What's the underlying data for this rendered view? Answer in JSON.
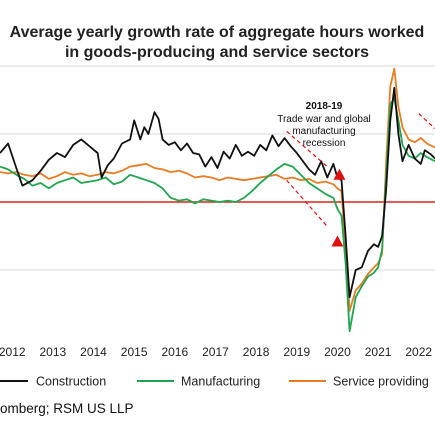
{
  "chart_data": {
    "type": "line",
    "title_line1": "Average yearly growth rate of aggregate hours worked",
    "title_line2": "in goods-producing and service sectors",
    "x_ticks": [
      "2012",
      "2013",
      "2014",
      "2015",
      "2016",
      "2017",
      "2018",
      "2019",
      "2020",
      "2021",
      "2022"
    ],
    "xlim": [
      2011.7,
      2022.4
    ],
    "ylim": [
      -10,
      10
    ],
    "reference_line": 0,
    "grid": "horizontal",
    "legend_position": "bottom",
    "annotation": {
      "year": "2018-19",
      "lines": [
        "Trade war and global",
        "manufacturing",
        "recession"
      ]
    },
    "series": [
      {
        "name": "Construction",
        "color": "#111111",
        "points": [
          [
            2011.7,
            3.6
          ],
          [
            2011.9,
            4.3
          ],
          [
            2012.1,
            2.5
          ],
          [
            2012.25,
            1.2
          ],
          [
            2012.5,
            1.6
          ],
          [
            2012.7,
            2.3
          ],
          [
            2012.9,
            3.1
          ],
          [
            2013.1,
            3.6
          ],
          [
            2013.3,
            3.3
          ],
          [
            2013.5,
            4.2
          ],
          [
            2013.7,
            4.6
          ],
          [
            2013.9,
            4.1
          ],
          [
            2014.1,
            3.6
          ],
          [
            2014.2,
            1.8
          ],
          [
            2014.35,
            2.7
          ],
          [
            2014.5,
            3.2
          ],
          [
            2014.7,
            4.3
          ],
          [
            2014.9,
            4.6
          ],
          [
            2015.0,
            6.0
          ],
          [
            2015.15,
            4.6
          ],
          [
            2015.25,
            5.5
          ],
          [
            2015.35,
            5.0
          ],
          [
            2015.5,
            6.6
          ],
          [
            2015.6,
            6.1
          ],
          [
            2015.7,
            4.6
          ],
          [
            2015.85,
            4.2
          ],
          [
            2016.0,
            4.4
          ],
          [
            2016.15,
            3.8
          ],
          [
            2016.3,
            4.3
          ],
          [
            2016.45,
            3.6
          ],
          [
            2016.6,
            3.5
          ],
          [
            2016.75,
            2.6
          ],
          [
            2016.9,
            3.3
          ],
          [
            2017.05,
            2.5
          ],
          [
            2017.2,
            3.7
          ],
          [
            2017.35,
            3.2
          ],
          [
            2017.5,
            4.2
          ],
          [
            2017.65,
            3.4
          ],
          [
            2017.8,
            3.7
          ],
          [
            2017.95,
            3.4
          ],
          [
            2018.1,
            4.2
          ],
          [
            2018.25,
            3.8
          ],
          [
            2018.4,
            4.9
          ],
          [
            2018.55,
            4.1
          ],
          [
            2018.7,
            4.7
          ],
          [
            2018.85,
            4.1
          ],
          [
            2019.0,
            3.6
          ],
          [
            2019.15,
            3.0
          ],
          [
            2019.3,
            2.4
          ],
          [
            2019.45,
            2.0
          ],
          [
            2019.6,
            3.0
          ],
          [
            2019.75,
            1.8
          ],
          [
            2019.9,
            2.8
          ],
          [
            2020.0,
            1.8
          ],
          [
            2020.1,
            1.6
          ],
          [
            2020.2,
            -2.5
          ],
          [
            2020.3,
            -7.0
          ],
          [
            2020.45,
            -5.0
          ],
          [
            2020.6,
            -4.8
          ],
          [
            2020.75,
            -3.6
          ],
          [
            2020.9,
            -3.1
          ],
          [
            2021.0,
            -3.3
          ],
          [
            2021.1,
            -2.5
          ],
          [
            2021.2,
            1.0
          ],
          [
            2021.3,
            6.0
          ],
          [
            2021.4,
            8.4
          ],
          [
            2021.5,
            5.0
          ],
          [
            2021.6,
            3.0
          ],
          [
            2021.75,
            4.2
          ],
          [
            2021.9,
            3.2
          ],
          [
            2022.05,
            2.8
          ],
          [
            2022.15,
            3.8
          ],
          [
            2022.3,
            3.5
          ],
          [
            2022.4,
            3.2
          ]
        ]
      },
      {
        "name": "Manufacturing",
        "color": "#21a551",
        "points": [
          [
            2011.7,
            2.6
          ],
          [
            2011.9,
            2.4
          ],
          [
            2012.1,
            2.0
          ],
          [
            2012.3,
            1.7
          ],
          [
            2012.5,
            1.2
          ],
          [
            2012.7,
            1.4
          ],
          [
            2012.9,
            1.0
          ],
          [
            2013.1,
            1.4
          ],
          [
            2013.3,
            1.6
          ],
          [
            2013.5,
            1.8
          ],
          [
            2013.7,
            1.4
          ],
          [
            2013.9,
            1.5
          ],
          [
            2014.1,
            1.6
          ],
          [
            2014.3,
            1.8
          ],
          [
            2014.5,
            1.3
          ],
          [
            2014.7,
            1.5
          ],
          [
            2014.9,
            2.0
          ],
          [
            2015.1,
            1.8
          ],
          [
            2015.3,
            1.6
          ],
          [
            2015.5,
            1.4
          ],
          [
            2015.7,
            1.0
          ],
          [
            2015.9,
            0.3
          ],
          [
            2016.1,
            0.1
          ],
          [
            2016.3,
            0.2
          ],
          [
            2016.5,
            -0.1
          ],
          [
            2016.7,
            0.2
          ],
          [
            2016.9,
            0.1
          ],
          [
            2017.1,
            0.0
          ],
          [
            2017.3,
            0.1
          ],
          [
            2017.5,
            0.0
          ],
          [
            2017.7,
            0.3
          ],
          [
            2017.9,
            0.8
          ],
          [
            2018.1,
            1.4
          ],
          [
            2018.3,
            1.9
          ],
          [
            2018.5,
            2.4
          ],
          [
            2018.7,
            2.8
          ],
          [
            2018.9,
            2.6
          ],
          [
            2019.1,
            2.0
          ],
          [
            2019.3,
            1.4
          ],
          [
            2019.5,
            1.0
          ],
          [
            2019.7,
            0.6
          ],
          [
            2019.9,
            0.3
          ],
          [
            2020.0,
            -0.5
          ],
          [
            2020.1,
            -1.0
          ],
          [
            2020.2,
            -4.5
          ],
          [
            2020.3,
            -9.5
          ],
          [
            2020.45,
            -7.0
          ],
          [
            2020.6,
            -6.2
          ],
          [
            2020.75,
            -5.5
          ],
          [
            2020.9,
            -5.2
          ],
          [
            2021.0,
            -4.8
          ],
          [
            2021.1,
            -3.5
          ],
          [
            2021.2,
            2.0
          ],
          [
            2021.3,
            7.2
          ],
          [
            2021.4,
            7.6
          ],
          [
            2021.5,
            6.0
          ],
          [
            2021.6,
            4.2
          ],
          [
            2021.75,
            3.4
          ],
          [
            2021.9,
            3.2
          ],
          [
            2022.05,
            3.6
          ],
          [
            2022.2,
            3.3
          ],
          [
            2022.4,
            3.0
          ]
        ]
      },
      {
        "name": "Service providing",
        "color": "#e87c25",
        "points": [
          [
            2011.7,
            2.2
          ],
          [
            2011.9,
            2.1
          ],
          [
            2012.1,
            2.2
          ],
          [
            2012.3,
            2.0
          ],
          [
            2012.5,
            1.9
          ],
          [
            2012.7,
            2.1
          ],
          [
            2012.9,
            1.7
          ],
          [
            2013.1,
            1.9
          ],
          [
            2013.3,
            2.2
          ],
          [
            2013.5,
            2.0
          ],
          [
            2013.7,
            2.1
          ],
          [
            2013.9,
            1.9
          ],
          [
            2014.1,
            2.0
          ],
          [
            2014.3,
            2.2
          ],
          [
            2014.5,
            2.1
          ],
          [
            2014.7,
            2.3
          ],
          [
            2014.9,
            2.6
          ],
          [
            2015.1,
            2.7
          ],
          [
            2015.3,
            2.8
          ],
          [
            2015.5,
            2.5
          ],
          [
            2015.7,
            2.4
          ],
          [
            2015.9,
            2.2
          ],
          [
            2016.1,
            2.3
          ],
          [
            2016.3,
            2.1
          ],
          [
            2016.5,
            1.8
          ],
          [
            2016.7,
            1.9
          ],
          [
            2016.9,
            1.8
          ],
          [
            2017.1,
            1.6
          ],
          [
            2017.3,
            1.8
          ],
          [
            2017.5,
            1.7
          ],
          [
            2017.7,
            1.6
          ],
          [
            2017.9,
            1.7
          ],
          [
            2018.1,
            1.8
          ],
          [
            2018.3,
            1.9
          ],
          [
            2018.5,
            2.0
          ],
          [
            2018.7,
            1.7
          ],
          [
            2018.9,
            1.8
          ],
          [
            2019.1,
            1.6
          ],
          [
            2019.3,
            1.7
          ],
          [
            2019.5,
            1.4
          ],
          [
            2019.7,
            1.5
          ],
          [
            2019.9,
            1.3
          ],
          [
            2020.0,
            1.0
          ],
          [
            2020.1,
            0.8
          ],
          [
            2020.2,
            -3.5
          ],
          [
            2020.3,
            -8.0
          ],
          [
            2020.45,
            -6.5
          ],
          [
            2020.6,
            -6.0
          ],
          [
            2020.75,
            -5.3
          ],
          [
            2020.9,
            -4.8
          ],
          [
            2021.0,
            -4.5
          ],
          [
            2021.1,
            -3.8
          ],
          [
            2021.2,
            3.0
          ],
          [
            2021.3,
            8.5
          ],
          [
            2021.4,
            9.8
          ],
          [
            2021.5,
            7.0
          ],
          [
            2021.6,
            5.5
          ],
          [
            2021.75,
            4.6
          ],
          [
            2021.9,
            4.4
          ],
          [
            2022.05,
            4.7
          ],
          [
            2022.2,
            4.3
          ],
          [
            2022.4,
            4.0
          ]
        ]
      }
    ],
    "markers": [
      {
        "x": 2020.05,
        "y": 2.0,
        "color": "#e01010"
      },
      {
        "x": 2020.0,
        "y": -2.9,
        "color": "#e01010"
      }
    ],
    "arrows": [
      {
        "from": [
          2018.75,
          5.2
        ],
        "to": [
          2019.75,
          2.6
        ],
        "color": "#e01010"
      },
      {
        "from": [
          2018.75,
          1.6
        ],
        "to": [
          2019.75,
          -1.8
        ],
        "color": "#e01010"
      },
      {
        "from": [
          2022.0,
          6.5
        ],
        "to": [
          2022.4,
          5.4
        ],
        "color": "#e01010"
      }
    ],
    "colors": {
      "zero_line": "#d9261c",
      "gridline": "#d9d9d9"
    }
  },
  "source_text": "omberg; RSM US LLP"
}
